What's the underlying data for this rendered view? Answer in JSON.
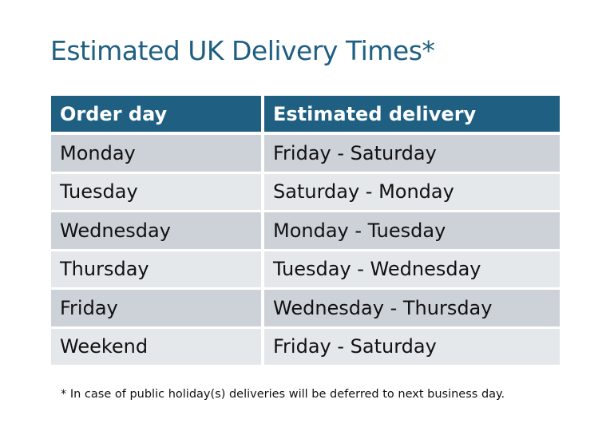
{
  "title": "Estimated UK Delivery Times*",
  "table": {
    "headers": [
      "Order day",
      "Estimated delivery"
    ],
    "rows": [
      [
        "Monday",
        "Friday - Saturday"
      ],
      [
        "Tuesday",
        "Saturday - Monday"
      ],
      [
        "Wednesday",
        "Monday - Tuesday"
      ],
      [
        "Thursday",
        "Tuesday - Wednesday"
      ],
      [
        "Friday",
        "Wednesday - Thursday"
      ],
      [
        "Weekend",
        "Friday - Saturday"
      ]
    ]
  },
  "footnote": "* In case of public holiday(s) deliveries will be deferred to next business day.",
  "colors": {
    "header": "#1f5f82",
    "row_odd": "#cdd1d8",
    "row_even": "#e5e8eb",
    "title": "#1f5f82"
  }
}
